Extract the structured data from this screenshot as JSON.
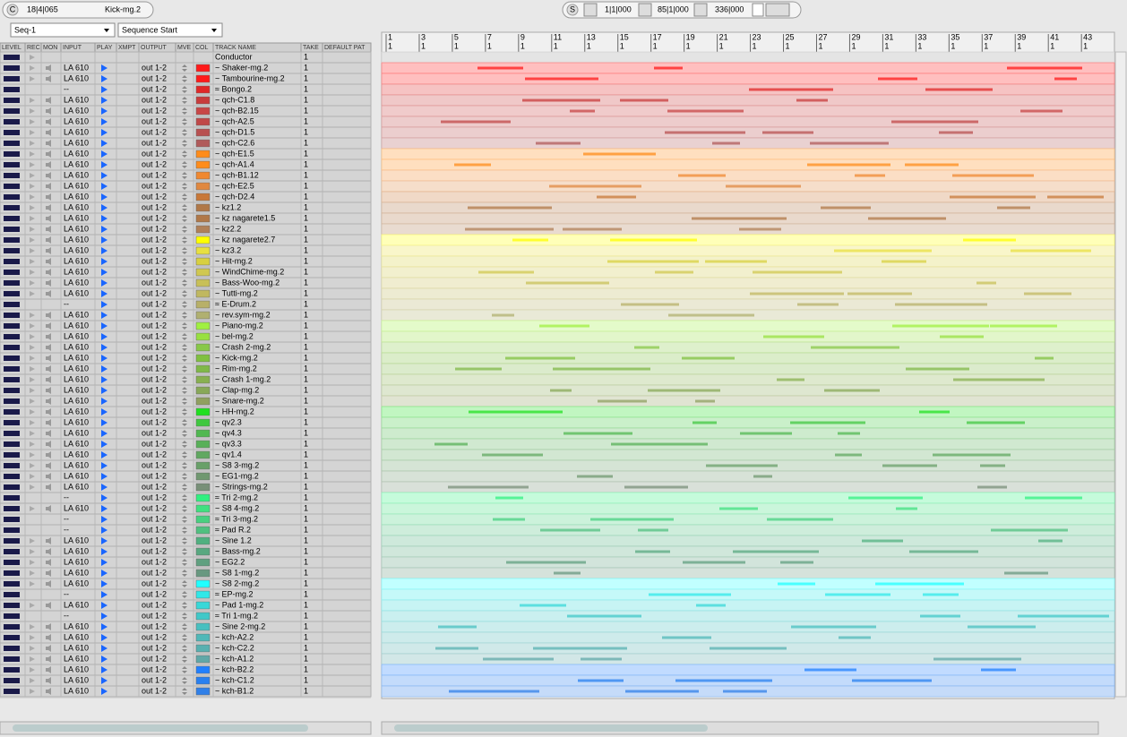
{
  "toolbar": {
    "mode": "C",
    "position": "18|4|065",
    "selected_track": "Kick-mg.2",
    "sync": "S",
    "start": "1|1|000",
    "end": "85|1|000",
    "length": "336|000"
  },
  "selectors": {
    "sequence": "Seq-1",
    "start": "Sequence Start"
  },
  "columns": [
    "LEVEL",
    "REC",
    "MON",
    "INPUT",
    "PLAY",
    "XMPT",
    "OUTPUT",
    "MVE",
    "COL",
    "TRACK NAME",
    "TAKE",
    "DEFAULT PAT"
  ],
  "ruler": {
    "bars": [
      "1",
      "3",
      "5",
      "7",
      "9",
      "11",
      "13",
      "15",
      "17",
      "19",
      "21",
      "23",
      "25",
      "27",
      "29",
      "31",
      "33",
      "35",
      "37",
      "39",
      "41",
      "43"
    ],
    "beat": "1"
  },
  "tracks": [
    {
      "name": "Conductor",
      "take": "1"
    },
    {
      "name": "~ Shaker-mg.2",
      "input": "LA 610",
      "output": "out 1-2",
      "take": "1",
      "color": "#ff1a1a"
    },
    {
      "name": "~ Tambourine-mg.2",
      "input": "LA 610",
      "output": "out 1-2",
      "take": "1",
      "color": "#ff1a1a"
    },
    {
      "name": "≈ Bongo.2",
      "input": "--",
      "output": "out 1-2",
      "take": "1",
      "color": "#e02828"
    },
    {
      "name": "~ qch-C1.8",
      "input": "LA 610",
      "output": "out 1-2",
      "take": "1",
      "color": "#c83c3c"
    },
    {
      "name": "~ qch-B2.15",
      "input": "LA 610",
      "output": "out 1-2",
      "take": "1",
      "color": "#c84646"
    },
    {
      "name": "~ qch-A2.5",
      "input": "LA 610",
      "output": "out 1-2",
      "take": "1",
      "color": "#c04848"
    },
    {
      "name": "~ qch-D1.5",
      "input": "LA 610",
      "output": "out 1-2",
      "take": "1",
      "color": "#b85050"
    },
    {
      "name": "~ qch-C2.6",
      "input": "LA 610",
      "output": "out 1-2",
      "take": "1",
      "color": "#b05a5a"
    },
    {
      "name": "~ qch-E1.5",
      "input": "LA 610",
      "output": "out 1-2",
      "take": "1",
      "color": "#ff8c1a"
    },
    {
      "name": "~ qch-A1.4",
      "input": "LA 610",
      "output": "out 1-2",
      "take": "1",
      "color": "#ff8c1a"
    },
    {
      "name": "~ qch-B1.12",
      "input": "LA 610",
      "output": "out 1-2",
      "take": "1",
      "color": "#f08830"
    },
    {
      "name": "~ qch-E2.5",
      "input": "LA 610",
      "output": "out 1-2",
      "take": "1",
      "color": "#e08840"
    },
    {
      "name": "~ qch-D2.4",
      "input": "LA 610",
      "output": "out 1-2",
      "take": "1",
      "color": "#c87838"
    },
    {
      "name": "~ kz1.2",
      "input": "LA 610",
      "output": "out 1-2",
      "take": "1",
      "color": "#b07848"
    },
    {
      "name": "~ kz nagarete1.5",
      "input": "LA 610",
      "output": "out 1-2",
      "take": "1",
      "color": "#b07848"
    },
    {
      "name": "~ kz2.2",
      "input": "LA 610",
      "output": "out 1-2",
      "take": "1",
      "color": "#b08058"
    },
    {
      "name": "~ kz nagarete2.7",
      "input": "LA 610",
      "output": "out 1-2",
      "take": "1",
      "color": "#ffff00"
    },
    {
      "name": "~ kz3.2",
      "input": "LA 610",
      "output": "out 1-2",
      "take": "1",
      "color": "#e8e040"
    },
    {
      "name": "~ Hit-mg.2",
      "input": "LA 610",
      "output": "out 1-2",
      "take": "1",
      "color": "#d8d040"
    },
    {
      "name": "~ WindChime-mg.2",
      "input": "LA 610",
      "output": "out 1-2",
      "take": "1",
      "color": "#d0c850"
    },
    {
      "name": "~ Bass-Woo-mg.2",
      "input": "LA 610",
      "output": "out 1-2",
      "take": "1",
      "color": "#c8c058"
    },
    {
      "name": "~ Tutti-mg.2",
      "input": "LA 610",
      "output": "out 1-2",
      "take": "1",
      "color": "#c0b860"
    },
    {
      "name": "≈ E-Drum.2",
      "input": "--",
      "output": "out 1-2",
      "take": "1",
      "color": "#b8b068"
    },
    {
      "name": "~ rev.sym-mg.2",
      "input": "LA 610",
      "output": "out 1-2",
      "take": "1",
      "color": "#b0b070"
    },
    {
      "name": "~ Piano-mg.2",
      "input": "LA 610",
      "output": "out 1-2",
      "take": "1",
      "color": "#a0f040"
    },
    {
      "name": "~ bel-mg.2",
      "input": "LA 610",
      "output": "out 1-2",
      "take": "1",
      "color": "#98e040"
    },
    {
      "name": "~ Crash 2-mg.2",
      "input": "LA 610",
      "output": "out 1-2",
      "take": "1",
      "color": "#88c848"
    },
    {
      "name": "~ Kick-mg.2",
      "input": "LA 610",
      "output": "out 1-2",
      "take": "1",
      "color": "#80c040"
    },
    {
      "name": "~ Rim-mg.2",
      "input": "LA 610",
      "output": "out 1-2",
      "take": "1",
      "color": "#80b848"
    },
    {
      "name": "~ Crash 1-mg.2",
      "input": "LA 610",
      "output": "out 1-2",
      "take": "1",
      "color": "#88b050"
    },
    {
      "name": "~ Clap-mg.2",
      "input": "LA 610",
      "output": "out 1-2",
      "take": "1",
      "color": "#88a858"
    },
    {
      "name": "~ Snare-mg.2",
      "input": "LA 610",
      "output": "out 1-2",
      "take": "1",
      "color": "#90a060"
    },
    {
      "name": "~ HH-mg.2",
      "input": "LA 610",
      "output": "out 1-2",
      "take": "1",
      "color": "#20e020"
    },
    {
      "name": "~ qv2.3",
      "input": "LA 610",
      "output": "out 1-2",
      "take": "1",
      "color": "#40c840"
    },
    {
      "name": "~ qv4.3",
      "input": "LA 610",
      "output": "out 1-2",
      "take": "1",
      "color": "#50b850"
    },
    {
      "name": "~ qv3.3",
      "input": "LA 610",
      "output": "out 1-2",
      "take": "1",
      "color": "#58b058"
    },
    {
      "name": "~ qv1.4",
      "input": "LA 610",
      "output": "out 1-2",
      "take": "1",
      "color": "#60a860"
    },
    {
      "name": "~ S8 3-mg.2",
      "input": "LA 610",
      "output": "out 1-2",
      "take": "1",
      "color": "#68a068"
    },
    {
      "name": "~ EG1-mg.2",
      "input": "LA 610",
      "output": "out 1-2",
      "take": "1",
      "color": "#709870"
    },
    {
      "name": "~ Strings-mg.2",
      "input": "LA 610",
      "output": "out 1-2",
      "take": "1",
      "color": "#789078"
    },
    {
      "name": "≈ Tri 2-mg.2",
      "input": "--",
      "output": "out 1-2",
      "take": "1",
      "color": "#30f080"
    },
    {
      "name": "~ S8 4-mg.2",
      "input": "LA 610",
      "output": "out 1-2",
      "take": "1",
      "color": "#40e080"
    },
    {
      "name": "≈ Tri 3-mg.2",
      "input": "--",
      "output": "out 1-2",
      "take": "1",
      "color": "#48d080"
    },
    {
      "name": "≈ Pad R.2",
      "input": "--",
      "output": "out 1-2",
      "take": "1",
      "color": "#50c080"
    },
    {
      "name": "~ Sine 1.2",
      "input": "LA 610",
      "output": "out 1-2",
      "take": "1",
      "color": "#50b080"
    },
    {
      "name": "~ Bass-mg.2",
      "input": "LA 610",
      "output": "out 1-2",
      "take": "1",
      "color": "#58a880"
    },
    {
      "name": "~ EG2.2",
      "input": "LA 610",
      "output": "out 1-2",
      "take": "1",
      "color": "#60a080"
    },
    {
      "name": "~ S8 1-mg.2",
      "input": "LA 610",
      "output": "out 1-2",
      "take": "1",
      "color": "#689880"
    },
    {
      "name": "~ S8 2-mg.2",
      "input": "LA 610",
      "output": "out 1-2",
      "take": "1",
      "color": "#20ffff"
    },
    {
      "name": "≈ EP-mg.2",
      "input": "--",
      "output": "out 1-2",
      "take": "1",
      "color": "#30e8e8"
    },
    {
      "name": "~ Pad 1-mg.2",
      "input": "LA 610",
      "output": "out 1-2",
      "take": "1",
      "color": "#38d8d8"
    },
    {
      "name": "≈ Tri 1-mg.2",
      "input": "--",
      "output": "out 1-2",
      "take": "1",
      "color": "#40c8c8"
    },
    {
      "name": "~ Sine 2-mg.2",
      "input": "LA 610",
      "output": "out 1-2",
      "take": "1",
      "color": "#48c0c0"
    },
    {
      "name": "~ kch-A2.2",
      "input": "LA 610",
      "output": "out 1-2",
      "take": "1",
      "color": "#50b8b8"
    },
    {
      "name": "~ kch-C2.2",
      "input": "LA 610",
      "output": "out 1-2",
      "take": "1",
      "color": "#58b0b0"
    },
    {
      "name": "~ kch-A1.2",
      "input": "LA 610",
      "output": "out 1-2",
      "take": "1",
      "color": "#60a8a8"
    },
    {
      "name": "~ kch-B2.2",
      "input": "LA 610",
      "output": "out 1-2",
      "take": "1",
      "color": "#2080ff"
    },
    {
      "name": "~ kch-C1.2",
      "input": "LA 610",
      "output": "out 1-2",
      "take": "1",
      "color": "#2880f0"
    },
    {
      "name": "~ kch-B1.2",
      "input": "LA 610",
      "output": "out 1-2",
      "take": "1",
      "color": "#3080e8"
    }
  ]
}
